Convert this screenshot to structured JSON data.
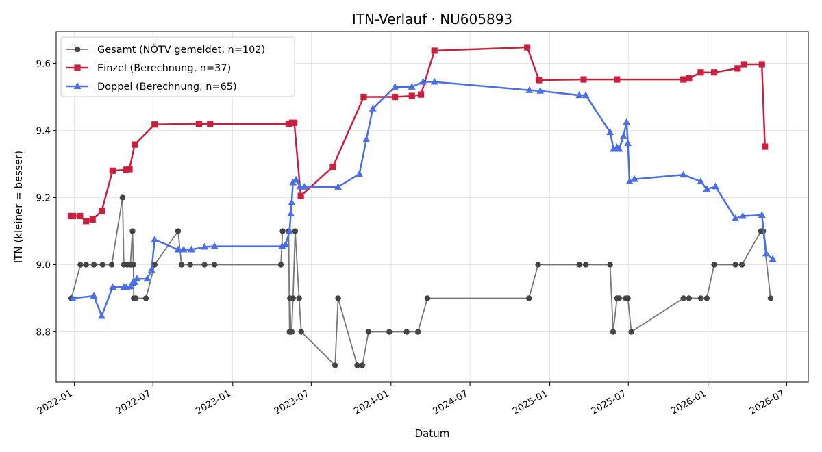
{
  "chart_data": {
    "type": "line",
    "title": "ITN-Verlauf · NU605893",
    "xlabel": "Datum",
    "ylabel": "ITN  (kleiner = besser)",
    "xlim": [
      "2021-11-20",
      "2026-08-20"
    ],
    "ylim": [
      8.65,
      9.695
    ],
    "x_ticks": [
      "2022-01",
      "2022-07",
      "2023-01",
      "2023-07",
      "2024-01",
      "2024-07",
      "2025-01",
      "2025-07",
      "2026-01",
      "2026-07"
    ],
    "y_ticks": [
      8.8,
      9.0,
      9.2,
      9.4,
      9.6
    ],
    "grid": true,
    "legend_position": "top-left",
    "series": [
      {
        "name": "Gesamt (NÖTV gemeldet, n=102)",
        "color": "#777777",
        "point_color": "#444444",
        "marker": "circle",
        "points": [
          [
            "2021-12-25",
            8.9
          ],
          [
            "2022-01-15",
            9.0
          ],
          [
            "2022-01-28",
            9.0
          ],
          [
            "2022-02-15",
            9.0
          ],
          [
            "2022-03-07",
            9.0
          ],
          [
            "2022-03-28",
            9.0
          ],
          [
            "2022-04-22",
            9.2
          ],
          [
            "2022-04-25",
            9.0
          ],
          [
            "2022-05-03",
            9.0
          ],
          [
            "2022-05-10",
            9.0
          ],
          [
            "2022-05-15",
            9.1
          ],
          [
            "2022-05-17",
            9.0
          ],
          [
            "2022-05-18",
            8.9
          ],
          [
            "2022-05-22",
            8.9
          ],
          [
            "2022-06-15",
            8.9
          ],
          [
            "2022-07-05",
            9.0
          ],
          [
            "2022-08-28",
            9.1
          ],
          [
            "2022-09-05",
            9.0
          ],
          [
            "2022-09-25",
            9.0
          ],
          [
            "2022-10-28",
            9.0
          ],
          [
            "2022-11-20",
            9.0
          ],
          [
            "2023-04-22",
            9.0
          ],
          [
            "2023-04-26",
            9.1
          ],
          [
            "2023-05-10",
            9.1
          ],
          [
            "2023-05-12",
            8.8
          ],
          [
            "2023-05-13",
            8.9
          ],
          [
            "2023-05-15",
            8.8
          ],
          [
            "2023-05-17",
            8.8
          ],
          [
            "2023-05-20",
            8.9
          ],
          [
            "2023-05-25",
            9.1
          ],
          [
            "2023-06-03",
            8.9
          ],
          [
            "2023-06-08",
            8.8
          ],
          [
            "2023-08-25",
            8.7
          ],
          [
            "2023-09-01",
            8.9
          ],
          [
            "2023-10-15",
            8.7
          ],
          [
            "2023-10-27",
            8.7
          ],
          [
            "2023-11-10",
            8.8
          ],
          [
            "2023-12-28",
            8.8
          ],
          [
            "2024-02-06",
            8.8
          ],
          [
            "2024-03-03",
            8.8
          ],
          [
            "2024-03-25",
            8.9
          ],
          [
            "2024-11-14",
            8.9
          ],
          [
            "2024-12-05",
            9.0
          ],
          [
            "2025-03-10",
            9.0
          ],
          [
            "2025-03-25",
            9.0
          ],
          [
            "2025-05-20",
            9.0
          ],
          [
            "2025-05-27",
            8.8
          ],
          [
            "2025-06-05",
            8.9
          ],
          [
            "2025-06-10",
            8.9
          ],
          [
            "2025-06-25",
            8.9
          ],
          [
            "2025-06-30",
            8.9
          ],
          [
            "2025-07-08",
            8.8
          ],
          [
            "2025-11-05",
            8.9
          ],
          [
            "2025-11-18",
            8.9
          ],
          [
            "2025-12-15",
            8.9
          ],
          [
            "2025-12-29",
            8.9
          ],
          [
            "2026-01-15",
            9.0
          ],
          [
            "2026-03-05",
            9.0
          ],
          [
            "2026-03-20",
            9.0
          ],
          [
            "2026-05-03",
            9.1
          ],
          [
            "2026-05-08",
            9.1
          ],
          [
            "2026-05-25",
            8.9
          ]
        ]
      },
      {
        "name": "Einzel (Berechnung, n=37)",
        "color": "#c8203f",
        "marker": "square",
        "points": [
          [
            "2021-12-24",
            9.145
          ],
          [
            "2021-12-29",
            9.145
          ],
          [
            "2022-01-14",
            9.145
          ],
          [
            "2022-01-28",
            9.13
          ],
          [
            "2022-02-12",
            9.135
          ],
          [
            "2022-03-05",
            9.16
          ],
          [
            "2022-03-30",
            9.28
          ],
          [
            "2022-05-01",
            9.283
          ],
          [
            "2022-05-08",
            9.285
          ],
          [
            "2022-05-20",
            9.358
          ],
          [
            "2022-07-05",
            9.418
          ],
          [
            "2022-10-15",
            9.42
          ],
          [
            "2022-11-10",
            9.42
          ],
          [
            "2023-05-10",
            9.42
          ],
          [
            "2023-05-18",
            9.423
          ],
          [
            "2023-05-23",
            9.423
          ],
          [
            "2023-06-07",
            9.205
          ],
          [
            "2023-08-20",
            9.292
          ],
          [
            "2023-10-30",
            9.5
          ],
          [
            "2024-01-10",
            9.5
          ],
          [
            "2024-02-18",
            9.503
          ],
          [
            "2024-03-10",
            9.507
          ],
          [
            "2024-04-10",
            9.638
          ],
          [
            "2024-11-10",
            9.648
          ],
          [
            "2024-12-07",
            9.55
          ],
          [
            "2025-03-20",
            9.552
          ],
          [
            "2025-06-05",
            9.552
          ],
          [
            "2025-11-05",
            9.552
          ],
          [
            "2025-11-18",
            9.555
          ],
          [
            "2025-12-15",
            9.573
          ],
          [
            "2026-01-15",
            9.573
          ],
          [
            "2026-03-10",
            9.585
          ],
          [
            "2026-03-25",
            9.597
          ],
          [
            "2026-05-05",
            9.597
          ],
          [
            "2026-05-12",
            9.352
          ]
        ]
      },
      {
        "name": "Doppel (Berechnung, n=65)",
        "color": "#4a6ee8",
        "marker": "triangle",
        "points": [
          [
            "2021-12-28",
            8.9
          ],
          [
            "2022-02-15",
            8.907
          ],
          [
            "2022-03-05",
            8.847
          ],
          [
            "2022-03-30",
            8.933
          ],
          [
            "2022-04-25",
            8.933
          ],
          [
            "2022-05-01",
            8.933
          ],
          [
            "2022-05-10",
            8.935
          ],
          [
            "2022-05-15",
            8.945
          ],
          [
            "2022-05-20",
            8.948
          ],
          [
            "2022-05-25",
            8.958
          ],
          [
            "2022-06-18",
            8.958
          ],
          [
            "2022-06-28",
            8.985
          ],
          [
            "2022-07-05",
            9.075
          ],
          [
            "2022-08-28",
            9.045
          ],
          [
            "2022-09-10",
            9.045
          ],
          [
            "2022-09-28",
            9.045
          ],
          [
            "2022-10-28",
            9.053
          ],
          [
            "2022-11-20",
            9.055
          ],
          [
            "2023-04-25",
            9.055
          ],
          [
            "2023-05-03",
            9.06
          ],
          [
            "2023-05-12",
            9.1
          ],
          [
            "2023-05-15",
            9.152
          ],
          [
            "2023-05-17",
            9.185
          ],
          [
            "2023-05-20",
            9.245
          ],
          [
            "2023-05-27",
            9.253
          ],
          [
            "2023-06-05",
            9.233
          ],
          [
            "2023-06-15",
            9.232
          ],
          [
            "2023-09-01",
            9.232
          ],
          [
            "2023-10-20",
            9.27
          ],
          [
            "2023-11-05",
            9.373
          ],
          [
            "2023-11-20",
            9.465
          ],
          [
            "2024-01-10",
            9.53
          ],
          [
            "2024-02-18",
            9.53
          ],
          [
            "2024-03-15",
            9.545
          ],
          [
            "2024-04-10",
            9.545
          ],
          [
            "2024-11-15",
            9.52
          ],
          [
            "2024-12-10",
            9.518
          ],
          [
            "2025-03-10",
            9.505
          ],
          [
            "2025-03-25",
            9.505
          ],
          [
            "2025-05-20",
            9.395
          ],
          [
            "2025-05-28",
            9.345
          ],
          [
            "2025-06-05",
            9.35
          ],
          [
            "2025-06-10",
            9.345
          ],
          [
            "2025-06-20",
            9.383
          ],
          [
            "2025-06-27",
            9.425
          ],
          [
            "2025-06-30",
            9.362
          ],
          [
            "2025-07-04",
            9.248
          ],
          [
            "2025-07-15",
            9.255
          ],
          [
            "2025-11-05",
            9.268
          ],
          [
            "2025-12-15",
            9.248
          ],
          [
            "2025-12-29",
            9.225
          ],
          [
            "2026-01-18",
            9.233
          ],
          [
            "2026-03-05",
            9.138
          ],
          [
            "2026-03-22",
            9.145
          ],
          [
            "2026-05-05",
            9.148
          ],
          [
            "2026-05-15",
            9.033
          ],
          [
            "2026-05-30",
            9.017
          ]
        ]
      }
    ]
  }
}
